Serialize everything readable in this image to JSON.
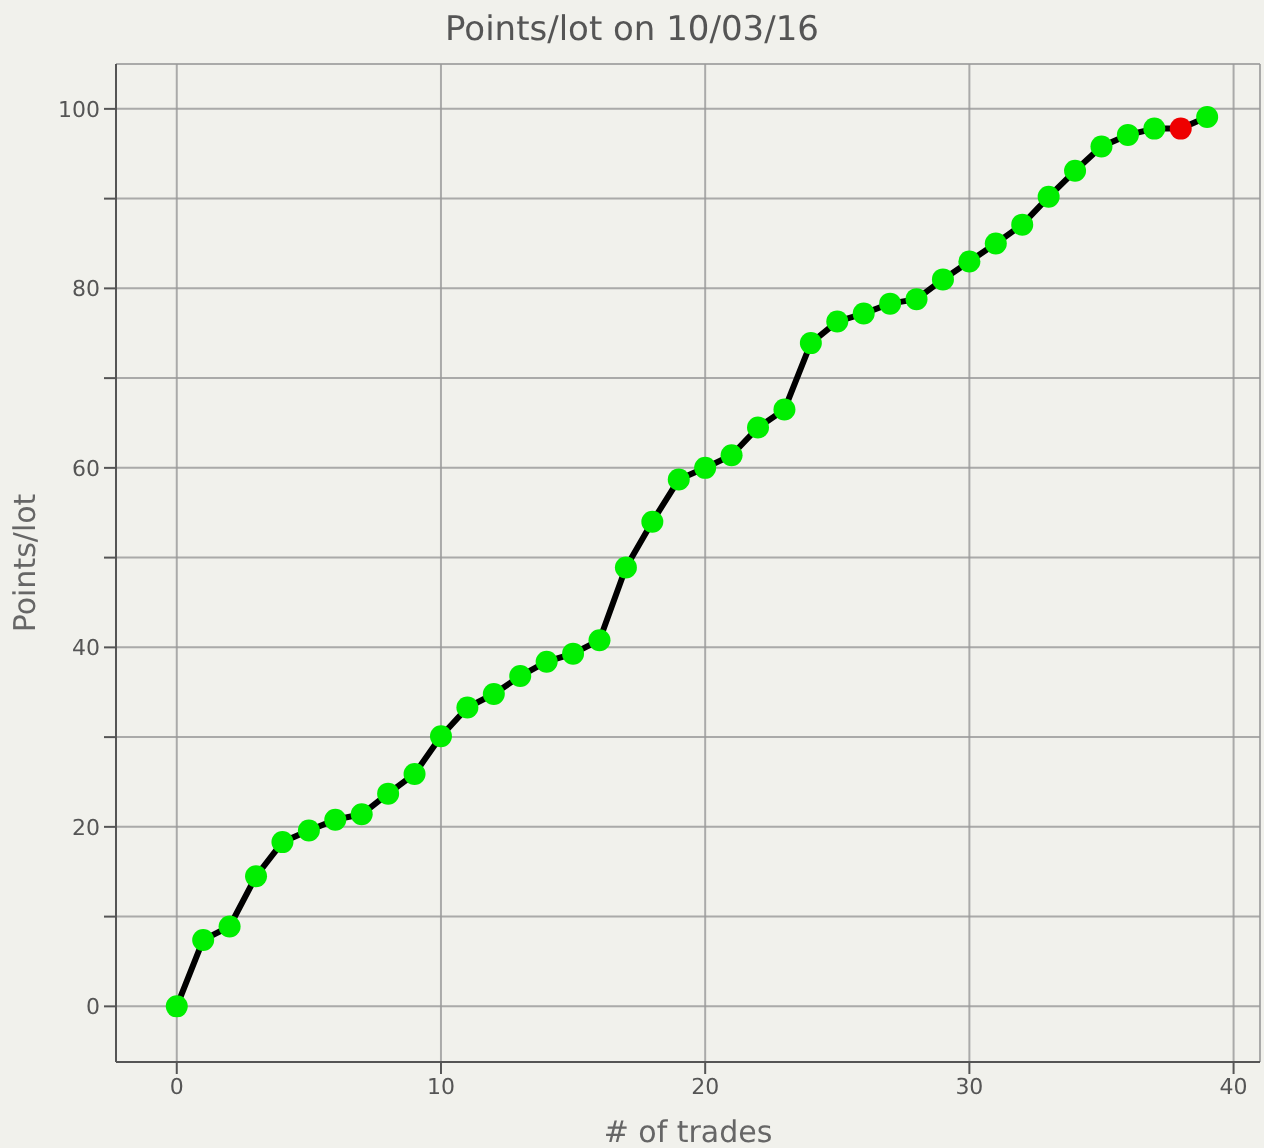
{
  "chart_data": {
    "type": "line",
    "title": "Points/lot on 10/03/16",
    "xlabel": "# of trades",
    "ylabel": "Points/lot",
    "x": [
      0,
      1,
      2,
      3,
      4,
      5,
      6,
      7,
      8,
      9,
      10,
      11,
      12,
      13,
      14,
      15,
      16,
      17,
      18,
      19,
      20,
      21,
      22,
      23,
      24,
      25,
      26,
      27,
      28,
      29,
      30,
      31,
      32,
      33,
      34,
      35,
      36,
      37,
      38,
      39
    ],
    "series": [
      {
        "color": "#000000",
        "values": [
          0,
          7.4,
          8.9,
          14.5,
          18.3,
          19.6,
          20.8,
          21.4,
          23.7,
          25.9,
          30.1,
          33.3,
          34.8,
          36.8,
          38.4,
          39.3,
          40.8,
          48.9,
          54.0,
          58.7,
          60.0,
          61.4,
          64.5,
          66.5,
          73.9,
          76.3,
          77.2,
          78.3,
          78.8,
          81.0,
          83.0,
          85.0,
          87.1,
          90.2,
          93.1,
          95.8,
          97.1,
          97.8,
          97.8,
          99.1
        ],
        "colors": [
          "#00ee00",
          "#00ee00",
          "#00ee00",
          "#00ee00",
          "#00ee00",
          "#00ee00",
          "#00ee00",
          "#00ee00",
          "#00ee00",
          "#00ee00",
          "#00ee00",
          "#00ee00",
          "#00ee00",
          "#00ee00",
          "#00ee00",
          "#00ee00",
          "#00ee00",
          "#00ee00",
          "#00ee00",
          "#00ee00",
          "#00ee00",
          "#00ee00",
          "#00ee00",
          "#00ee00",
          "#00ee00",
          "#00ee00",
          "#00ee00",
          "#00ee00",
          "#00ee00",
          "#00ee00",
          "#00ee00",
          "#00ee00",
          "#00ee00",
          "#00ee00",
          "#00ee00",
          "#00ee00",
          "#00ee00",
          "#00ee00",
          "#ee0000",
          "#00ee00"
        ]
      }
    ],
    "xlim": [
      -2.3,
      41
    ],
    "xticks": [
      0,
      10,
      20,
      30,
      40
    ],
    "ylim": [
      -6.2,
      105
    ],
    "yticks": [
      0,
      {
        "value": 10,
        "label": null
      },
      20,
      {
        "value": 30,
        "label": null
      },
      40,
      {
        "value": 50,
        "label": null
      },
      60,
      {
        "value": 70,
        "label": null
      },
      80,
      {
        "value": 90,
        "label": null
      },
      100
    ],
    "grid": true,
    "marker": "circle",
    "line_style": "solid"
  }
}
